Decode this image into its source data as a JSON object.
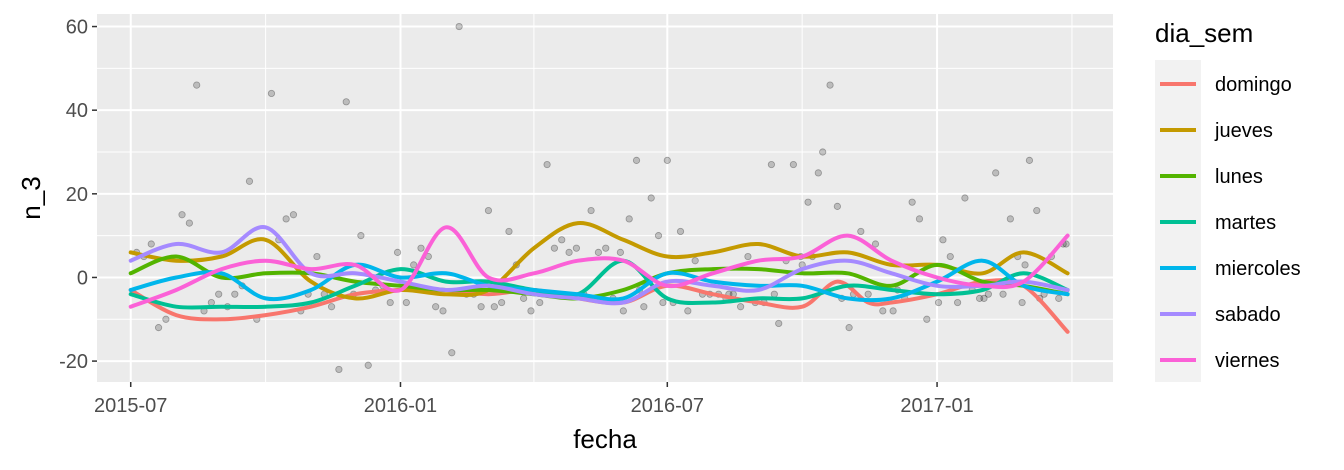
{
  "chart_data": {
    "type": "line",
    "title": "",
    "xlabel": "fecha",
    "ylabel": "n_3",
    "x_ticks": [
      "2015-07",
      "2016-01",
      "2016-07",
      "2017-01"
    ],
    "y_ticks": [
      "-20",
      "0",
      "20",
      "40",
      "60"
    ],
    "xlim": [
      "2015-06-08",
      "2017-05-01"
    ],
    "ylim": [
      -25,
      63
    ],
    "grid": true,
    "legend": {
      "title": "dia_sem",
      "position": "right"
    },
    "series": [
      {
        "name": "domingo",
        "color": "#F8766D",
        "x": [
          "2015-07-01",
          "2015-08-01",
          "2015-09-01",
          "2015-10-01",
          "2015-11-01",
          "2015-12-01",
          "2016-01-01",
          "2016-02-01",
          "2016-03-01",
          "2016-04-01",
          "2016-05-01",
          "2016-06-01",
          "2016-07-01",
          "2016-08-01",
          "2016-09-01",
          "2016-10-01",
          "2016-10-25",
          "2016-11-15",
          "2016-12-01",
          "2017-01-01",
          "2017-02-01",
          "2017-03-01",
          "2017-03-31"
        ],
        "y": [
          -3,
          -9,
          -10,
          -9,
          -7,
          -4,
          -3,
          -3,
          -4,
          -3,
          -5,
          -6,
          -2,
          -4,
          -6,
          -7,
          -1,
          -6,
          -6,
          -4,
          -1,
          -2,
          -13
        ]
      },
      {
        "name": "jueves",
        "color": "#C49A00",
        "x": [
          "2015-07-01",
          "2015-08-01",
          "2015-09-01",
          "2015-10-01",
          "2015-11-01",
          "2015-12-01",
          "2016-01-01",
          "2016-02-01",
          "2016-03-01",
          "2016-04-01",
          "2016-05-01",
          "2016-06-01",
          "2016-07-01",
          "2016-08-01",
          "2016-09-01",
          "2016-10-01",
          "2016-11-01",
          "2016-12-01",
          "2017-01-01",
          "2017-02-01",
          "2017-03-01",
          "2017-03-31"
        ],
        "y": [
          6,
          4,
          5,
          9,
          -1,
          -5,
          -3,
          -4,
          -3,
          7,
          13,
          9,
          5,
          6,
          8,
          5,
          6,
          3,
          3,
          1,
          6,
          1
        ]
      },
      {
        "name": "lunes",
        "color": "#53B400",
        "x": [
          "2015-07-01",
          "2015-08-01",
          "2015-09-01",
          "2015-10-01",
          "2015-11-01",
          "2015-12-01",
          "2016-01-01",
          "2016-02-01",
          "2016-03-01",
          "2016-04-01",
          "2016-05-01",
          "2016-06-01",
          "2016-07-01",
          "2016-08-01",
          "2016-09-01",
          "2016-10-01",
          "2016-11-01",
          "2016-12-01",
          "2017-01-01",
          "2017-02-01",
          "2017-03-01",
          "2017-03-31"
        ],
        "y": [
          1,
          5,
          0,
          1,
          1,
          -1,
          -2,
          -3,
          -3,
          -4,
          -5,
          -3,
          1,
          2,
          2,
          1,
          1,
          -2,
          3,
          -1,
          -2,
          -4
        ]
      },
      {
        "name": "martes",
        "color": "#00C094",
        "x": [
          "2015-07-01",
          "2015-08-01",
          "2015-09-01",
          "2015-10-01",
          "2015-11-01",
          "2015-12-01",
          "2016-01-01",
          "2016-02-01",
          "2016-03-01",
          "2016-04-01",
          "2016-05-01",
          "2016-06-01",
          "2016-07-01",
          "2016-08-01",
          "2016-09-01",
          "2016-10-01",
          "2016-11-01",
          "2016-12-01",
          "2017-01-01",
          "2017-02-01",
          "2017-03-01",
          "2017-03-31"
        ],
        "y": [
          -4,
          -7,
          -7,
          -7,
          -6,
          -2,
          2,
          -1,
          -1,
          -3,
          -4,
          4,
          -5,
          -6,
          -5,
          -5,
          -2,
          -3,
          -4,
          -3,
          1,
          -3
        ]
      },
      {
        "name": "miercoles",
        "color": "#00B6EB",
        "x": [
          "2015-07-01",
          "2015-08-01",
          "2015-09-01",
          "2015-10-01",
          "2015-11-01",
          "2015-12-01",
          "2016-01-01",
          "2016-02-01",
          "2016-03-01",
          "2016-04-01",
          "2016-05-01",
          "2016-06-01",
          "2016-07-01",
          "2016-08-01",
          "2016-09-01",
          "2016-10-01",
          "2016-11-01",
          "2016-12-01",
          "2017-01-01",
          "2017-02-01",
          "2017-03-01",
          "2017-03-31"
        ],
        "y": [
          -3,
          0,
          1,
          -5,
          -3,
          3,
          0,
          1,
          -2,
          -3,
          -4,
          -5,
          1,
          -1,
          -2,
          -2,
          -5,
          -5,
          -1,
          4,
          -2,
          -4
        ]
      },
      {
        "name": "sabado",
        "color": "#A58AFF",
        "x": [
          "2015-07-01",
          "2015-08-01",
          "2015-09-01",
          "2015-10-01",
          "2015-11-01",
          "2015-12-01",
          "2016-01-01",
          "2016-02-01",
          "2016-03-01",
          "2016-04-01",
          "2016-05-01",
          "2016-06-01",
          "2016-07-01",
          "2016-08-01",
          "2016-09-01",
          "2016-10-01",
          "2016-11-01",
          "2016-12-01",
          "2017-01-01",
          "2017-02-01",
          "2017-03-01",
          "2017-03-31"
        ],
        "y": [
          4,
          8,
          6,
          12,
          1,
          1,
          -1,
          -3,
          -2,
          -4,
          -5,
          -6,
          -1,
          -2,
          -3,
          2,
          4,
          1,
          -2,
          -2,
          -1,
          -3
        ]
      },
      {
        "name": "viernes",
        "color": "#FB61D7",
        "x": [
          "2015-07-01",
          "2015-08-01",
          "2015-09-01",
          "2015-10-01",
          "2015-11-01",
          "2015-12-01",
          "2016-01-01",
          "2016-02-01",
          "2016-03-01",
          "2016-04-01",
          "2016-05-01",
          "2016-06-01",
          "2016-07-01",
          "2016-08-01",
          "2016-09-01",
          "2016-10-01",
          "2016-11-01",
          "2016-12-01",
          "2017-01-01",
          "2017-02-01",
          "2017-03-01",
          "2017-03-31"
        ],
        "y": [
          -7,
          -3,
          2,
          4,
          2,
          3,
          -3,
          12,
          0,
          1,
          4,
          4,
          -2,
          1,
          4,
          5,
          10,
          4,
          0,
          -2,
          -1,
          10
        ]
      }
    ],
    "points": {
      "color": "#000000",
      "opacity": 0.2,
      "x": [
        "2015-07-20",
        "2015-08-15",
        "2015-10-05",
        "2015-11-25",
        "2016-02-10",
        "2016-10-20",
        "2016-07-01",
        "2016-09-10",
        "2016-10-15",
        "2016-06-10",
        "2016-06-20",
        "2016-04-10",
        "2016-05-10",
        "2017-02-10",
        "2017-01-20",
        "2016-10-05",
        "2016-10-12",
        "2017-03-05",
        "2016-12-20",
        "2016-07-10",
        "2015-12-05",
        "2015-12-10",
        "2016-03-15",
        "2015-09-20",
        "2015-08-05",
        "2016-06-25",
        "2016-02-05",
        "2016-09-25",
        "2016-10-25",
        "2016-12-15",
        "2017-03-10",
        "2017-02-20",
        "2015-10-20",
        "2016-03-01",
        "2016-06-05",
        "2016-04-20",
        "2015-11-20",
        "2016-05-20",
        "2016-11-10",
        "2017-01-05",
        "2015-07-10",
        "2015-08-20",
        "2015-09-10",
        "2015-10-10",
        "2015-11-10",
        "2015-12-20",
        "2016-01-10",
        "2016-02-20",
        "2016-03-20",
        "2016-04-05",
        "2016-05-05",
        "2016-06-15",
        "2016-07-20",
        "2016-08-10",
        "2016-08-25",
        "2016-09-05",
        "2016-09-20",
        "2016-11-05",
        "2016-11-20",
        "2016-12-05",
        "2017-01-10",
        "2017-01-25",
        "2017-02-05",
        "2017-02-25",
        "2017-03-15",
        "2017-03-25",
        "2015-07-25",
        "2015-08-25",
        "2015-09-25",
        "2015-10-25",
        "2015-11-05",
        "2015-12-25",
        "2016-01-20",
        "2016-02-25",
        "2016-03-25",
        "2016-04-25",
        "2016-05-25",
        "2016-06-01",
        "2016-07-05",
        "2016-07-25",
        "2016-08-05",
        "2016-08-20",
        "2016-09-15",
        "2016-10-01",
        "2016-11-25",
        "2016-12-10",
        "2017-01-15",
        "2017-02-15",
        "2017-03-20",
        "2017-03-30",
        "2015-07-15",
        "2015-08-10",
        "2015-09-05",
        "2015-10-15",
        "2015-11-15",
        "2015-12-15",
        "2016-01-05",
        "2016-01-25",
        "2016-02-15",
        "2016-03-10",
        "2016-04-15",
        "2016-05-15",
        "2016-06-28",
        "2016-07-15",
        "2016-08-15",
        "2016-08-30",
        "2016-09-30",
        "2016-10-28",
        "2016-11-15",
        "2016-12-25",
        "2017-01-30",
        "2017-02-28",
        "2017-03-12",
        "2017-03-28",
        "2015-07-05",
        "2015-08-30",
        "2015-09-15",
        "2015-10-30",
        "2015-11-30",
        "2015-12-30",
        "2016-01-15",
        "2016-01-30",
        "2016-03-05",
        "2016-03-30",
        "2016-04-30",
        "2016-05-30",
        "2016-06-12",
        "2016-07-30",
        "2016-08-12",
        "2016-09-12",
        "2016-10-08",
        "2016-11-02",
        "2016-12-02",
        "2017-01-02",
        "2017-02-02",
        "2017-03-02"
      ],
      "y": [
        -12,
        46,
        44,
        42,
        60,
        46,
        28,
        27,
        30,
        28,
        19,
        27,
        16,
        25,
        19,
        18,
        25,
        28,
        14,
        11,
        10,
        -21,
        11,
        23,
        15,
        10,
        -18,
        27,
        17,
        18,
        16,
        14,
        15,
        16,
        14,
        9,
        -22,
        7,
        11,
        9,
        5,
        -8,
        -4,
        9,
        -4,
        -2,
        3,
        -4,
        3,
        -6,
        -4,
        -7,
        4,
        -5,
        5,
        -6,
        4,
        -4,
        8,
        -3,
        5,
        -3,
        -4,
        5,
        -4,
        -5,
        -10,
        -6,
        -10,
        -8,
        5,
        -6,
        5,
        -7,
        -5,
        6,
        -5,
        -8,
        -6,
        -4,
        -4,
        -7,
        -11,
        3,
        -8,
        -5,
        -6,
        -4,
        5,
        8,
        8,
        13,
        -7,
        14,
        -7,
        -3,
        -6,
        -7,
        -4,
        -6,
        7,
        6,
        -6,
        -8,
        -4,
        -6,
        5,
        -5,
        -4,
        -10,
        -5,
        -6,
        -5,
        8,
        6,
        -4,
        -2,
        -4,
        -4,
        6,
        7,
        -8,
        -7,
        -8,
        7,
        6,
        -3,
        -4,
        -4,
        -4,
        5,
        -12,
        -8,
        -6,
        -5,
        3
      ]
    }
  }
}
